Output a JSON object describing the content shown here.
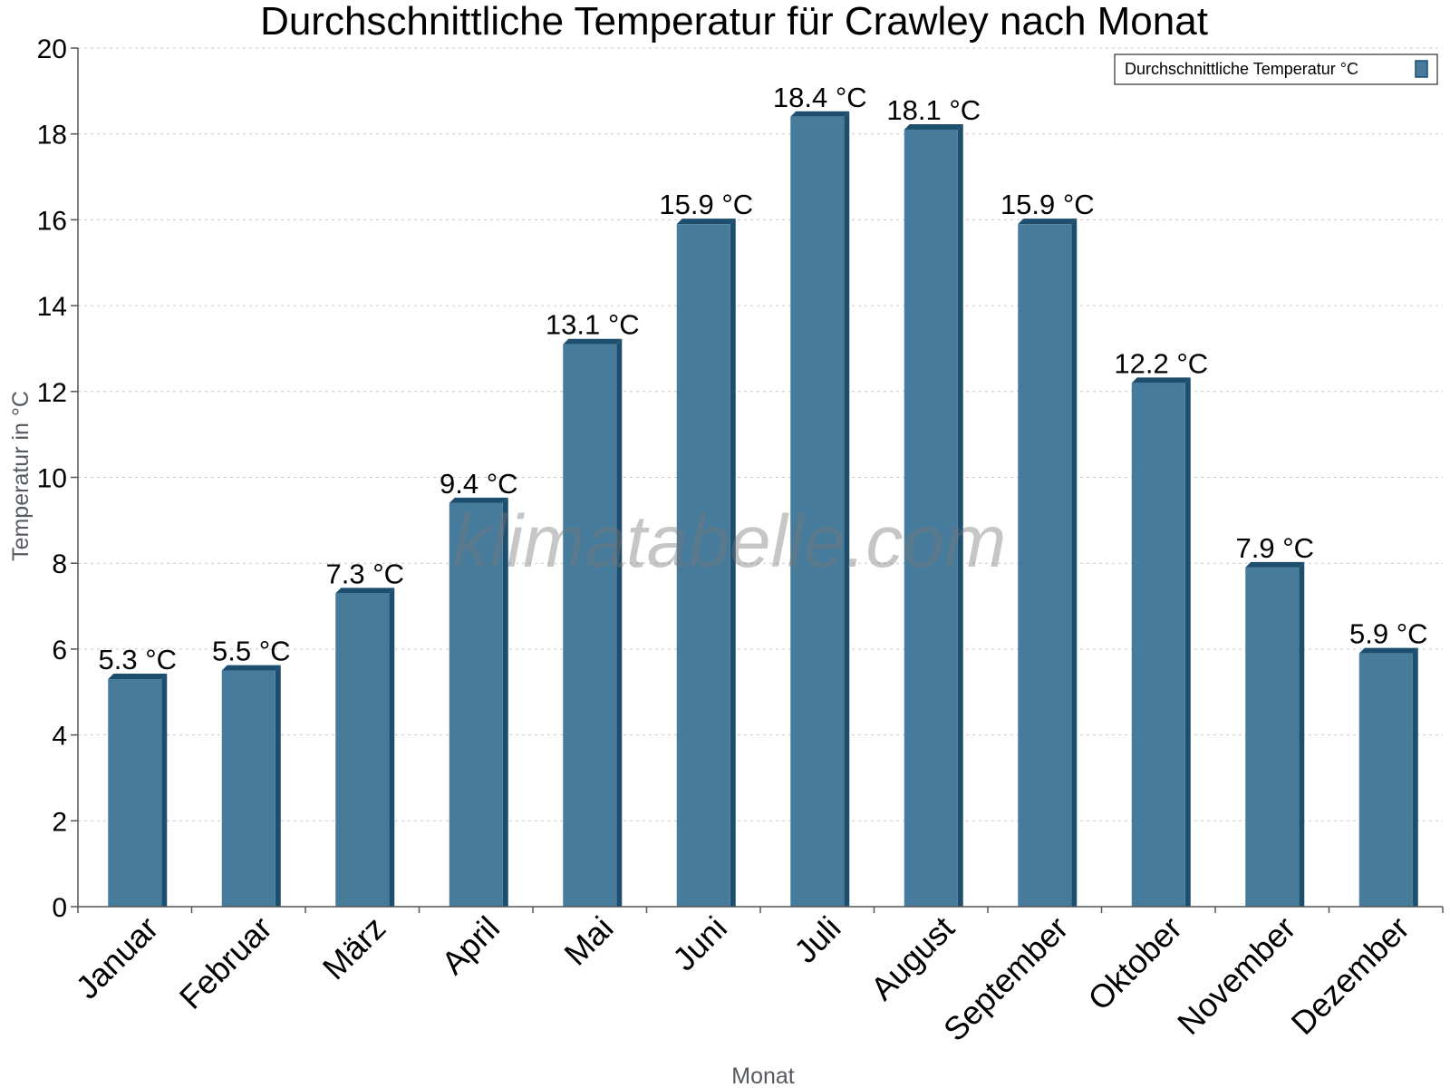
{
  "chart_data": {
    "type": "bar",
    "title": "Durchschnittliche Temperatur für Crawley nach Monat",
    "xlabel": "Monat",
    "ylabel": "Temperatur in °C",
    "ylim": [
      0,
      20
    ],
    "yticks": [
      "0",
      "2",
      "4",
      "6",
      "8",
      "10",
      "12",
      "14",
      "16",
      "18",
      "20"
    ],
    "grid": true,
    "legend_position": "top-right",
    "categories": [
      "Januar",
      "Februar",
      "März",
      "April",
      "Mai",
      "Juni",
      "Juli",
      "August",
      "September",
      "Oktober",
      "November",
      "Dezember"
    ],
    "series": [
      {
        "name": "Durchschnittliche Temperatur °C",
        "values": [
          5.3,
          5.5,
          7.3,
          9.4,
          13.1,
          15.9,
          18.4,
          18.1,
          15.9,
          12.2,
          7.9,
          5.9
        ],
        "labels": [
          "5.3 °C",
          "5.5 °C",
          "7.3 °C",
          "9.4 °C",
          "13.1 °C",
          "15.9 °C",
          "18.4 °C",
          "18.1 °C",
          "15.9 °C",
          "12.2 °C",
          "7.9 °C",
          "5.9 °C"
        ]
      }
    ],
    "colors": {
      "bar": "#467b9c",
      "bar_dark": "#1d4e6e",
      "grid": "#c8c8c8",
      "axis": "#555555"
    }
  },
  "watermark": "klimatabelle.com"
}
